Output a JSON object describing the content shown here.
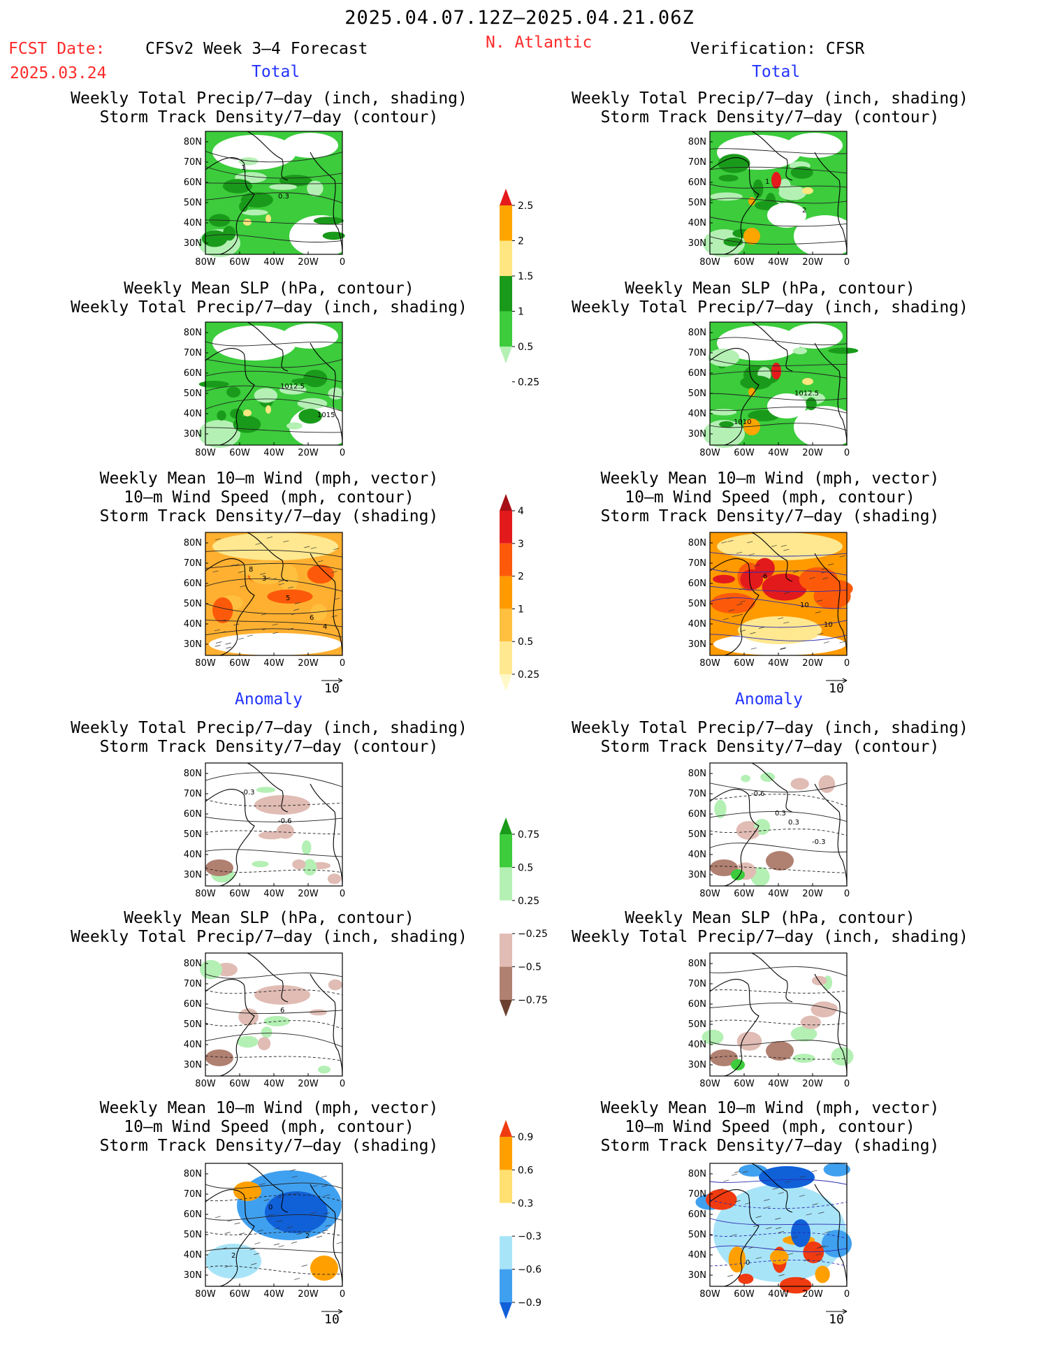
{
  "header": {
    "date_range": "2025.04.07.12Z–2025.04.21.06Z",
    "fcst_label": "FCST Date:",
    "fcst_date": "2025.03.24",
    "product": "CFSv2 Week 3–4 Forecast",
    "region": "N. Atlantic",
    "verification": "Verification: CFSR"
  },
  "sections": {
    "total": "Total",
    "anomaly": "Anomaly"
  },
  "titles": {
    "precip_storm": [
      "Weekly Total Precip/7–day (inch, shading)",
      "Storm Track Density/7–day (contour)"
    ],
    "slp_precip": [
      "Weekly Mean SLP (hPa, contour)",
      "Weekly Total Precip/7–day (inch, shading)"
    ],
    "wind": [
      "Weekly Mean 10–m Wind (mph, vector)",
      "10–m Wind Speed (mph, contour)",
      "Storm Track Density/7–day (shading)"
    ]
  },
  "axes": {
    "x_ticks": [
      "80W",
      "60W",
      "40W",
      "20W",
      "0"
    ],
    "y_ticks": [
      "80N",
      "70N",
      "60N",
      "50N",
      "40N",
      "30N"
    ]
  },
  "vector_scale": "10",
  "contour_labels": {
    "total_precip_fc": [
      "1",
      "0.3"
    ],
    "total_precip_ver": [
      "1",
      "2"
    ],
    "total_slp_fc": [
      "1012.5",
      "1015"
    ],
    "total_slp_ver": [
      "1012.5",
      "1010"
    ],
    "total_wind_fc": [
      "6",
      "8",
      "5",
      "4",
      "3"
    ],
    "total_wind_ver": [
      "10",
      "6",
      "10"
    ],
    "anom_precip_fc": [
      "-0.3",
      "-0.6"
    ],
    "anom_precip_ver": [
      "0.3",
      "-0.3",
      "-0.6",
      "0.3"
    ],
    "anom_slp_fc": [
      "6"
    ],
    "anom_wind_fc": [
      "2",
      "0",
      "2"
    ],
    "anom_wind_ver": [
      "0"
    ]
  },
  "colorbars": {
    "precip_total": {
      "labels": [
        "2.5",
        "2",
        "1.5",
        "1",
        "0.5",
        "0.25"
      ],
      "colors": [
        "#e41a1c",
        "#ffa500",
        "#ffe680",
        "#1a9a1a",
        "#3ccc3c",
        "#b4f0b4"
      ]
    },
    "storm_total": {
      "labels": [
        "4",
        "3",
        "2",
        "1",
        "0.5",
        "0.25"
      ],
      "colors": [
        "#a50f15",
        "#e31a1c",
        "#fc5a0a",
        "#ff9a00",
        "#ffc040",
        "#ffe890",
        "#fff8c8"
      ]
    },
    "precip_anom": {
      "labels": [
        "0.75",
        "0.5",
        "0.25",
        "−0.25",
        "−0.5",
        "−0.75"
      ],
      "colors": [
        "#1a9a1a",
        "#3ccc3c",
        "#b4f0b4",
        "#ffffff",
        "#e0bcb4",
        "#b08070",
        "#6b4030"
      ]
    },
    "storm_anom": {
      "labels": [
        "0.9",
        "0.6",
        "0.3",
        "−0.3",
        "−0.6",
        "−0.9"
      ],
      "colors": [
        "#f03a10",
        "#ffa000",
        "#ffe070",
        "#ffffff",
        "#a8e4f8",
        "#40a0f0",
        "#1060d8"
      ]
    }
  }
}
